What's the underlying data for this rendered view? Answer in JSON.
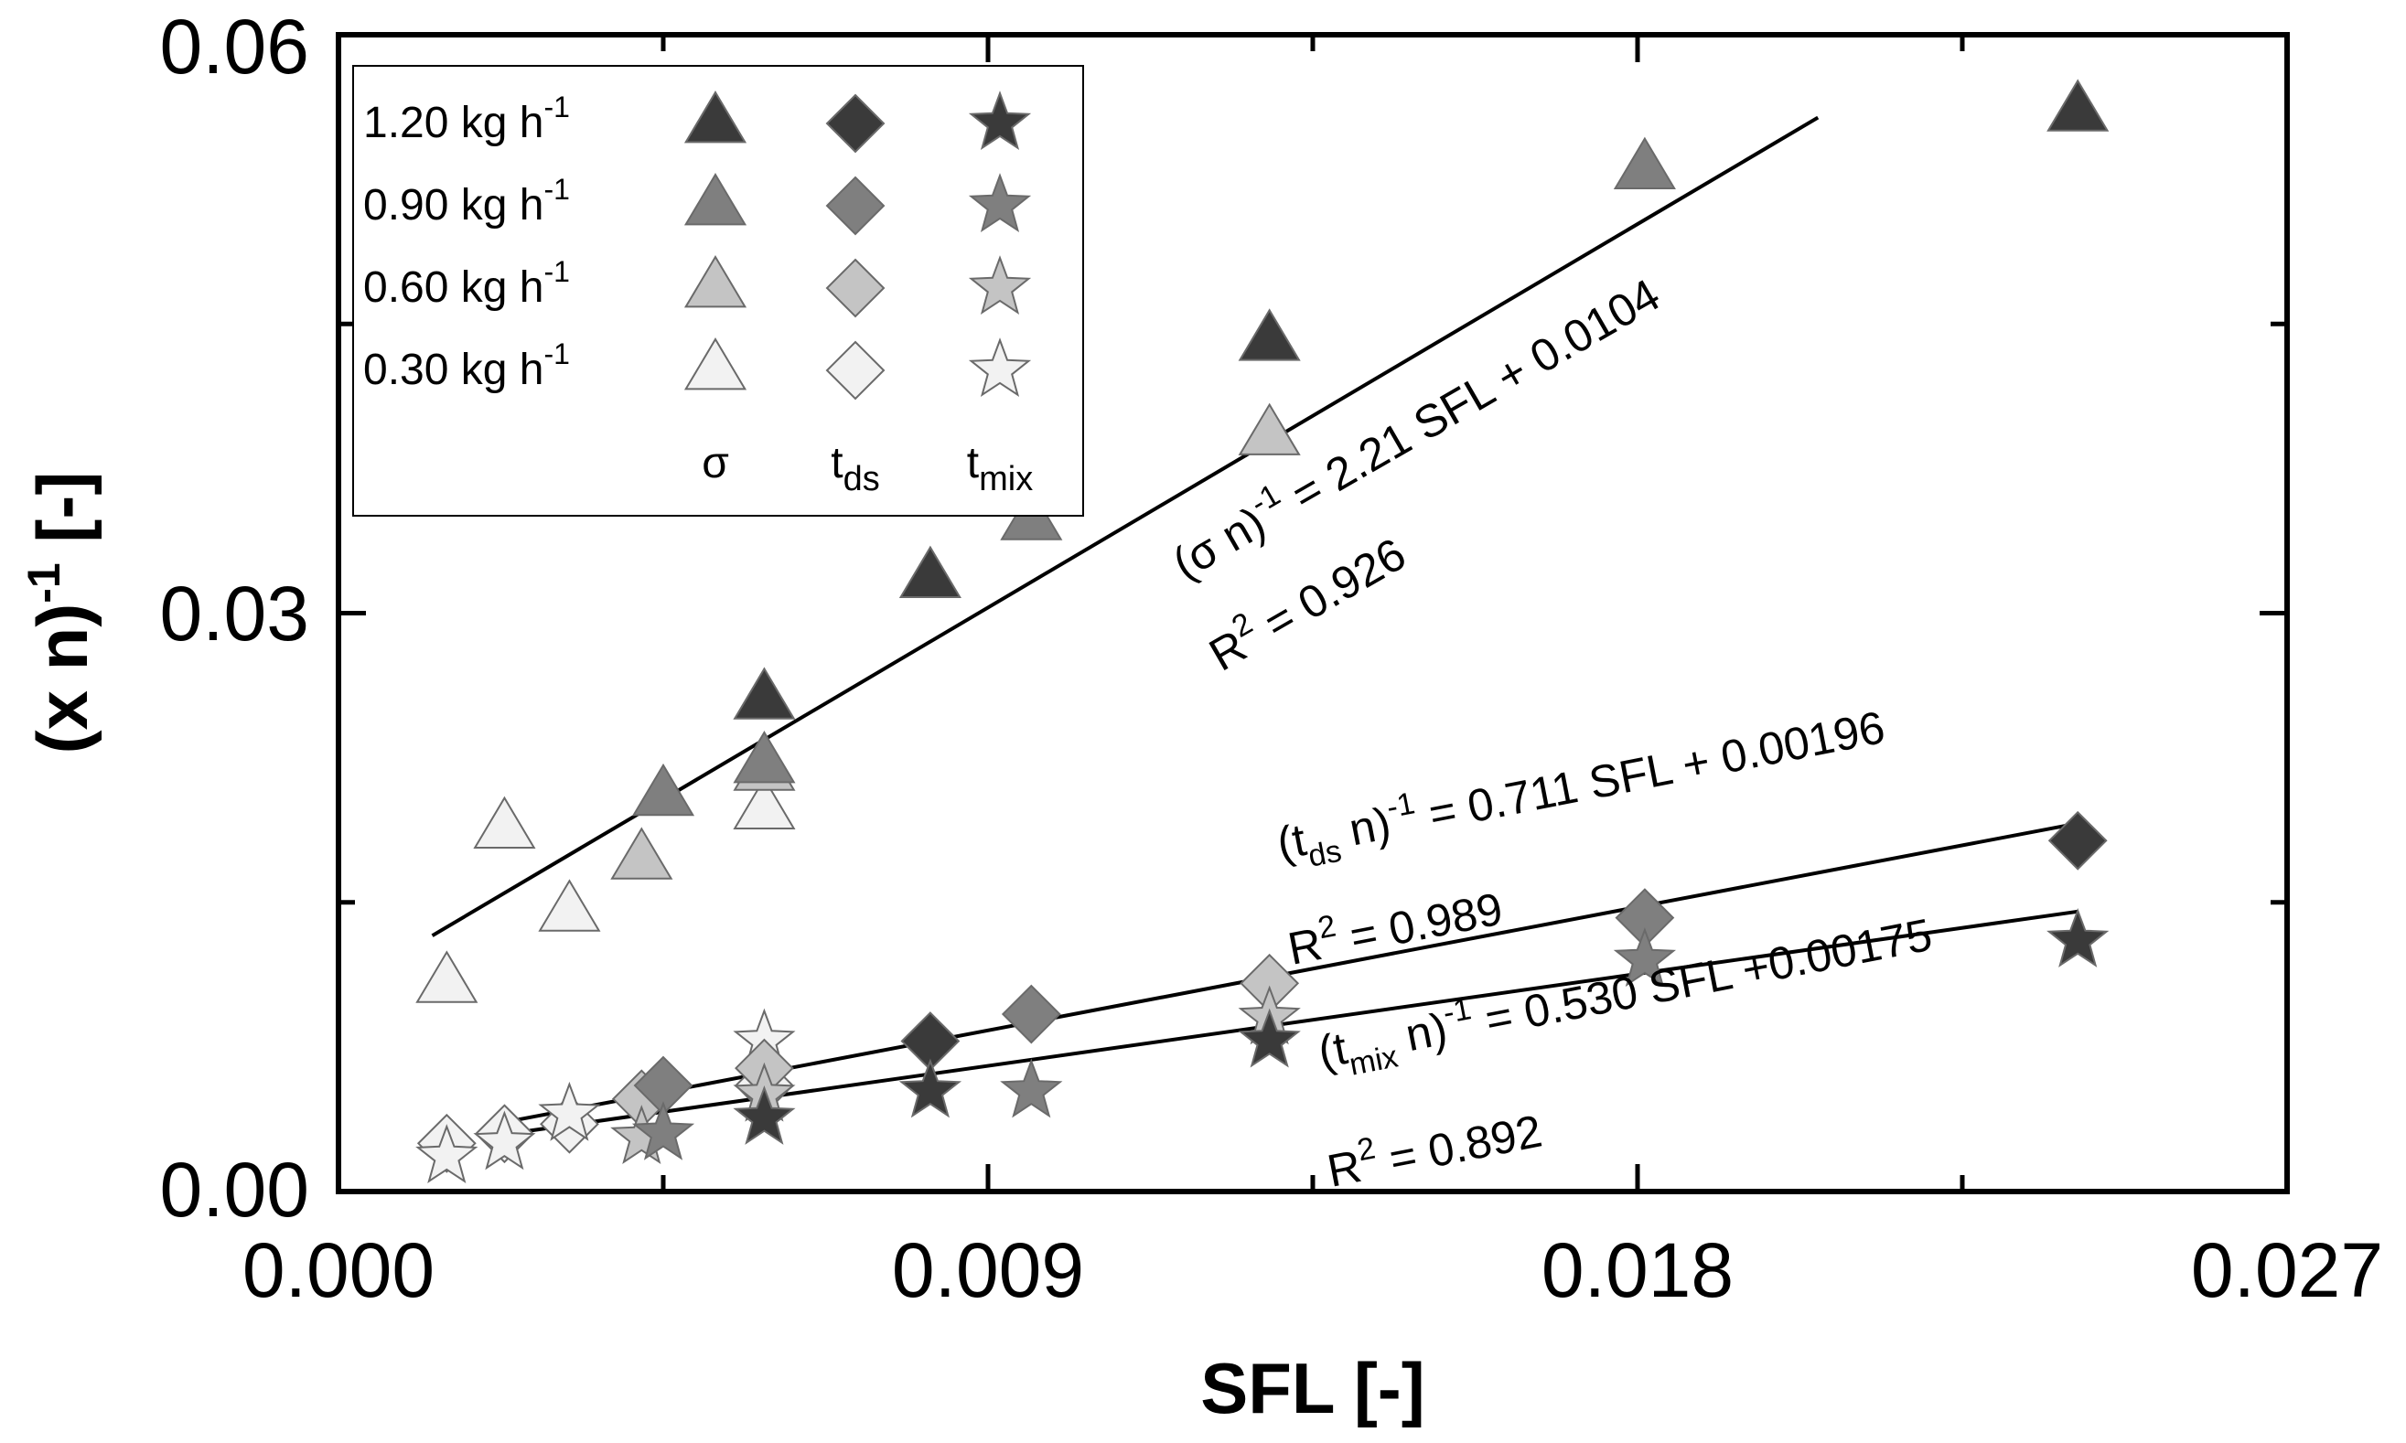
{
  "chart_data": {
    "type": "scatter",
    "xlabel": "SFL  [-]",
    "ylabel": "(x n)",
    "ylabel_sup": "-1",
    "ylabel_tail": " [-]",
    "xlim": [
      0.0,
      0.027
    ],
    "ylim": [
      0.0,
      0.06
    ],
    "xticks": [
      "0.000",
      "0.009",
      "0.018",
      "0.027"
    ],
    "yticks": [
      "0.00",
      "0.03",
      "0.06"
    ],
    "colors": {
      "1.20": "#3a3a3a",
      "0.90": "#7f7f7f",
      "0.60": "#c4c4c4",
      "0.30": "#f2f2f2"
    },
    "legend": {
      "rows": [
        {
          "label": "1.20 kg h",
          "sup": "-1",
          "flow": "1.20"
        },
        {
          "label": "0.90 kg h",
          "sup": "-1",
          "flow": "0.90"
        },
        {
          "label": "0.60 kg h",
          "sup": "-1",
          "flow": "0.60"
        },
        {
          "label": "0.30 kg h",
          "sup": "-1",
          "flow": "0.30"
        }
      ],
      "columns": [
        {
          "symbol": "triangle",
          "label": "σ",
          "sub": ""
        },
        {
          "symbol": "diamond",
          "label": "t",
          "sub": "ds"
        },
        {
          "symbol": "star",
          "label": "t",
          "sub": "mix"
        }
      ]
    },
    "series": [
      {
        "name": "σ 1.20",
        "marker": "triangle",
        "flow": "1.20",
        "points": [
          [
            0.0082,
            0.0318
          ],
          [
            0.0129,
            0.0441
          ],
          [
            0.0241,
            0.056
          ],
          [
            0.0059,
            0.0255
          ]
        ]
      },
      {
        "name": "σ 0.90",
        "marker": "triangle",
        "flow": "0.90",
        "points": [
          [
            0.0045,
            0.0205
          ],
          [
            0.0059,
            0.0222
          ],
          [
            0.0096,
            0.0348
          ],
          [
            0.0181,
            0.053
          ]
        ]
      },
      {
        "name": "σ 0.60",
        "marker": "triangle",
        "flow": "0.60",
        "points": [
          [
            0.0042,
            0.0172
          ],
          [
            0.0059,
            0.0218
          ],
          [
            0.0129,
            0.0392
          ]
        ]
      },
      {
        "name": "σ 0.30",
        "marker": "triangle",
        "flow": "0.30",
        "points": [
          [
            0.0015,
            0.0108
          ],
          [
            0.0023,
            0.0188
          ],
          [
            0.0032,
            0.0145
          ],
          [
            0.0059,
            0.0198
          ]
        ]
      },
      {
        "name": "tds 1.20",
        "marker": "diamond",
        "flow": "1.20",
        "points": [
          [
            0.0082,
            0.0078
          ],
          [
            0.0241,
            0.0182
          ]
        ]
      },
      {
        "name": "tds 0.90",
        "marker": "diamond",
        "flow": "0.90",
        "points": [
          [
            0.0045,
            0.0055
          ],
          [
            0.0096,
            0.0092
          ],
          [
            0.0181,
            0.0142
          ]
        ]
      },
      {
        "name": "tds 0.60",
        "marker": "diamond",
        "flow": "0.60",
        "points": [
          [
            0.0042,
            0.0048
          ],
          [
            0.0059,
            0.0064
          ],
          [
            0.0129,
            0.0108
          ]
        ]
      },
      {
        "name": "tds 0.30",
        "marker": "diamond",
        "flow": "0.30",
        "points": [
          [
            0.0015,
            0.0025
          ],
          [
            0.0023,
            0.003
          ],
          [
            0.0032,
            0.0035
          ],
          [
            0.0059,
            0.0055
          ]
        ]
      },
      {
        "name": "tmix 1.20",
        "marker": "star",
        "flow": "1.20",
        "points": [
          [
            0.0082,
            0.0052
          ],
          [
            0.0129,
            0.0078
          ],
          [
            0.0241,
            0.013
          ],
          [
            0.0059,
            0.0038
          ]
        ]
      },
      {
        "name": "tmix 0.90",
        "marker": "star",
        "flow": "0.90",
        "points": [
          [
            0.0045,
            0.003
          ],
          [
            0.0096,
            0.0052
          ],
          [
            0.0181,
            0.012
          ]
        ]
      },
      {
        "name": "tmix 0.60",
        "marker": "star",
        "flow": "0.60",
        "points": [
          [
            0.0042,
            0.0028
          ],
          [
            0.0059,
            0.005
          ],
          [
            0.0129,
            0.009
          ]
        ]
      },
      {
        "name": "tmix 0.30",
        "marker": "star",
        "flow": "0.30",
        "points": [
          [
            0.0015,
            0.0018
          ],
          [
            0.0023,
            0.0025
          ],
          [
            0.0032,
            0.004
          ],
          [
            0.0059,
            0.0078
          ]
        ]
      }
    ],
    "fits": [
      {
        "name": "sigma-fit",
        "slope": 2.21,
        "intercept": 0.0104,
        "x_range": [
          0.0013,
          0.0205
        ]
      },
      {
        "name": "tds-fit",
        "slope": 0.711,
        "intercept": 0.00196,
        "x_range": [
          0.0023,
          0.0241
        ]
      },
      {
        "name": "tmix-fit",
        "slope": 0.53,
        "intercept": 0.00175,
        "x_range": [
          0.0023,
          0.0241
        ]
      }
    ],
    "annotations": {
      "sigma_eq_a": "(σ n)",
      "sigma_eq_sup": "-1",
      "sigma_eq_b": " = 2.21 SFL + 0.0104",
      "sigma_r2_a": "R",
      "sigma_r2_sup": "2",
      "sigma_r2_b": " = 0.926",
      "tds_eq_a": "(t",
      "tds_eq_sub": "ds",
      "tds_eq_b": " n)",
      "tds_eq_sup": "-1",
      "tds_eq_c": " = 0.711 SFL + 0.00196",
      "tds_r2_a": "R",
      "tds_r2_sup": "2",
      "tds_r2_b": " = 0.989",
      "tmix_eq_a": "(t",
      "tmix_eq_sub": "mix",
      "tmix_eq_b": " n)",
      "tmix_eq_sup": "-1",
      "tmix_eq_c": " = 0.530 SFL +0.00175",
      "tmix_r2_a": "R",
      "tmix_r2_sup": "2",
      "tmix_r2_b": " = 0.892"
    }
  }
}
